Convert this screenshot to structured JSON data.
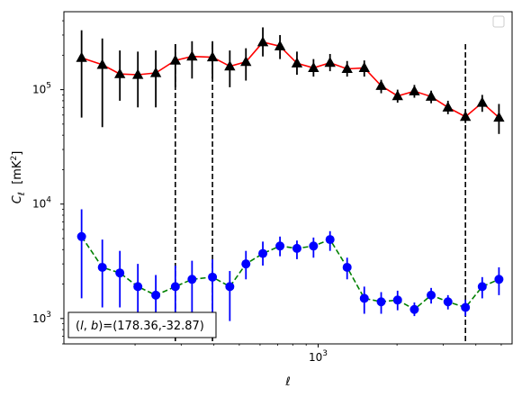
{
  "chart_data": {
    "type": "scatter",
    "title": "",
    "xlabel": "ℓ",
    "ylabel": "C_ℓ  [mK²]",
    "xscale": "log",
    "yscale": "log",
    "xlim": [
      107,
      5500
    ],
    "ylim": [
      600,
      480000
    ],
    "grid": false,
    "legend_placement": "top-right",
    "annotation": "(l, b)=(178.36,-32.87)",
    "xticks": [
      {
        "value": 1000,
        "label": "10³"
      }
    ],
    "yticks": [
      {
        "value": 1000,
        "label": "10³"
      },
      {
        "value": 10000,
        "label": "10⁴"
      },
      {
        "value": 100000,
        "label": "10⁵"
      }
    ],
    "vlines": [
      285,
      395,
      3650
    ],
    "series": [
      {
        "marker": "triangle",
        "marker_color": "#000000",
        "line_color": "#ff0000",
        "line_style": "solid",
        "x": [
          125,
          150,
          175,
          205,
          240,
          285,
          330,
          395,
          460,
          530,
          615,
          715,
          830,
          960,
          1110,
          1290,
          1500,
          1740,
          2010,
          2330,
          2700,
          3130,
          3650,
          4230,
          4900
        ],
        "y": [
          190000,
          165000,
          137000,
          135000,
          140000,
          180000,
          195000,
          192000,
          160000,
          175000,
          260000,
          240000,
          170000,
          155000,
          172000,
          152000,
          155000,
          108000,
          88000,
          97000,
          87000,
          70000,
          58000,
          77000,
          57000
        ],
        "err_low": [
          57000,
          47000,
          80000,
          70000,
          70000,
          105000,
          125000,
          125000,
          105000,
          120000,
          195000,
          185000,
          135000,
          130000,
          145000,
          130000,
          130000,
          93000,
          77000,
          85000,
          76000,
          61000,
          51000,
          64000,
          41000
        ],
        "err_high": [
          330000,
          280000,
          220000,
          215000,
          220000,
          250000,
          265000,
          265000,
          220000,
          230000,
          350000,
          300000,
          215000,
          185000,
          205000,
          178000,
          180000,
          122000,
          100000,
          110000,
          98000,
          80000,
          66000,
          90000,
          75000
        ]
      },
      {
        "marker": "circle",
        "marker_color": "#0000ff",
        "line_color": "#008000",
        "line_style": "dashed",
        "x": [
          125,
          150,
          175,
          205,
          240,
          285,
          330,
          395,
          460,
          530,
          615,
          715,
          830,
          960,
          1110,
          1290,
          1500,
          1740,
          2010,
          2330,
          2700,
          3130,
          3650,
          4230,
          4900
        ],
        "y": [
          5200,
          2800,
          2500,
          1900,
          1600,
          1900,
          2200,
          2300,
          1900,
          3000,
          3700,
          4300,
          4100,
          4300,
          4900,
          2800,
          1500,
          1400,
          1450,
          1200,
          1600,
          1400,
          1250,
          1900,
          2200
        ],
        "err_low": [
          1500,
          1250,
          1250,
          900,
          900,
          900,
          1000,
          1100,
          950,
          2200,
          2900,
          3500,
          3300,
          3400,
          3900,
          2200,
          1100,
          1100,
          1180,
          1050,
          1350,
          1200,
          1050,
          1500,
          1600
        ],
        "err_high": [
          9000,
          4900,
          3900,
          3000,
          2400,
          2900,
          3200,
          3300,
          2600,
          3900,
          4700,
          5200,
          4800,
          5100,
          5800,
          3400,
          1900,
          1700,
          1750,
          1380,
          1850,
          1600,
          1460,
          2300,
          2800
        ]
      }
    ]
  }
}
